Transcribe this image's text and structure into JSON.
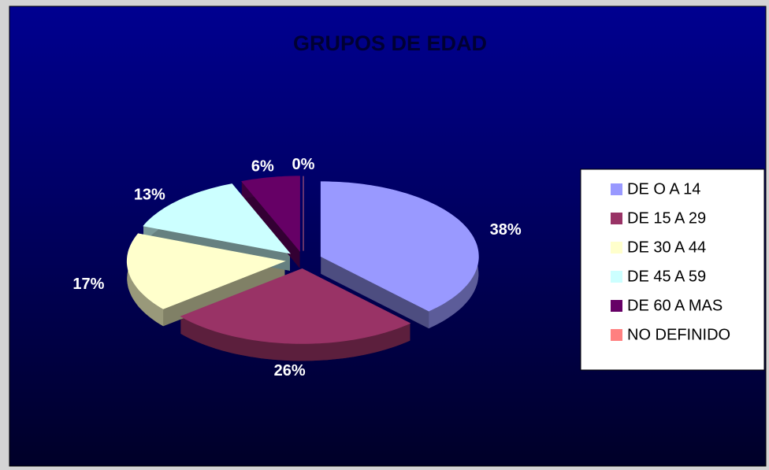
{
  "chart_data": {
    "type": "pie",
    "title": "GRUPOS DE EDAD",
    "categories": [
      "DE O A 14",
      "DE 15 A 29",
      "DE 30 A 44",
      "DE 45 A 59",
      "DE 60 A MAS",
      "NO DEFINIDO"
    ],
    "values": [
      38,
      26,
      17,
      13,
      6,
      0
    ],
    "value_labels": [
      "38%",
      "26%",
      "17%",
      "13%",
      "6%",
      "0%"
    ],
    "colors": [
      "#9999ff",
      "#993366",
      "#ffffcc",
      "#ccffff",
      "#660066",
      "#ff8080"
    ],
    "legend": "right"
  }
}
